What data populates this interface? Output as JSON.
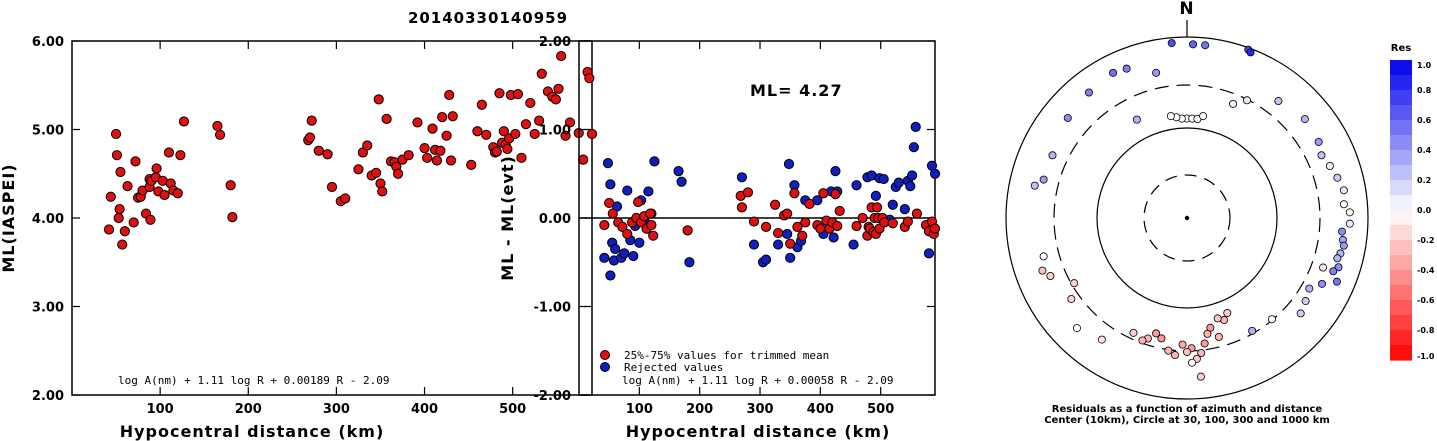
{
  "chart_data": [
    {
      "type": "scatter",
      "title": "20140330140959",
      "xlabel": "Hypocentral distance (km)",
      "ylabel": "ML(IASPEI)",
      "xlim": [
        0,
        590
      ],
      "ylim": [
        2.0,
        6.0
      ],
      "x_ticks": [
        "100",
        "200",
        "300",
        "400",
        "500"
      ],
      "y_ticks": [
        "2.00",
        "3.00",
        "4.00",
        "5.00",
        "6.00"
      ],
      "formula": "log A(nm) + 1.11 log R + 0.00189 R - 2.09",
      "point_color": "#e01010",
      "points": [
        [
          42,
          3.87
        ],
        [
          44,
          4.24
        ],
        [
          50,
          4.95
        ],
        [
          51,
          4.71
        ],
        [
          53,
          4.0
        ],
        [
          54,
          4.1
        ],
        [
          55,
          4.52
        ],
        [
          57,
          3.7
        ],
        [
          60,
          3.85
        ],
        [
          63,
          4.36
        ],
        [
          70,
          3.95
        ],
        [
          72,
          4.64
        ],
        [
          75,
          4.23
        ],
        [
          78,
          4.24
        ],
        [
          80,
          4.31
        ],
        [
          84,
          4.05
        ],
        [
          88,
          4.44
        ],
        [
          88,
          4.35
        ],
        [
          89,
          3.98
        ],
        [
          90,
          4.42
        ],
        [
          95,
          4.46
        ],
        [
          96,
          4.56
        ],
        [
          98,
          4.3
        ],
        [
          103,
          4.42
        ],
        [
          105,
          4.26
        ],
        [
          110,
          4.74
        ],
        [
          112,
          4.39
        ],
        [
          115,
          4.31
        ],
        [
          120,
          4.28
        ],
        [
          123,
          4.71
        ],
        [
          127,
          5.09
        ],
        [
          165,
          5.04
        ],
        [
          168,
          4.94
        ],
        [
          180,
          4.37
        ],
        [
          182,
          4.01
        ],
        [
          268,
          4.88
        ],
        [
          270,
          4.91
        ],
        [
          272,
          5.1
        ],
        [
          280,
          4.76
        ],
        [
          290,
          4.72
        ],
        [
          295,
          4.35
        ],
        [
          305,
          4.19
        ],
        [
          310,
          4.22
        ],
        [
          325,
          4.55
        ],
        [
          330,
          4.74
        ],
        [
          335,
          4.82
        ],
        [
          340,
          4.48
        ],
        [
          345,
          4.51
        ],
        [
          348,
          5.34
        ],
        [
          350,
          4.39
        ],
        [
          352,
          4.3
        ],
        [
          357,
          5.12
        ],
        [
          362,
          4.64
        ],
        [
          366,
          4.63
        ],
        [
          368,
          4.58
        ],
        [
          370,
          4.5
        ],
        [
          375,
          4.66
        ],
        [
          382,
          4.71
        ],
        [
          392,
          5.08
        ],
        [
          400,
          4.79
        ],
        [
          403,
          4.68
        ],
        [
          409,
          5.01
        ],
        [
          412,
          4.77
        ],
        [
          414,
          4.65
        ],
        [
          418,
          4.76
        ],
        [
          420,
          5.14
        ],
        [
          425,
          4.93
        ],
        [
          428,
          5.39
        ],
        [
          430,
          4.65
        ],
        [
          432,
          5.15
        ],
        [
          453,
          4.6
        ],
        [
          460,
          4.98
        ],
        [
          465,
          5.28
        ],
        [
          470,
          4.94
        ],
        [
          478,
          4.8
        ],
        [
          480,
          4.74
        ],
        [
          482,
          4.75
        ],
        [
          485,
          5.41
        ],
        [
          488,
          4.85
        ],
        [
          490,
          4.98
        ],
        [
          492,
          4.83
        ],
        [
          494,
          4.78
        ],
        [
          496,
          4.9
        ],
        [
          498,
          5.39
        ],
        [
          503,
          4.95
        ],
        [
          506,
          5.4
        ],
        [
          510,
          4.68
        ],
        [
          515,
          5.06
        ],
        [
          520,
          5.3
        ],
        [
          525,
          4.95
        ],
        [
          530,
          5.1
        ],
        [
          533,
          5.63
        ],
        [
          540,
          5.43
        ],
        [
          545,
          5.37
        ],
        [
          549,
          5.34
        ],
        [
          552,
          5.46
        ],
        [
          555,
          5.83
        ],
        [
          560,
          4.93
        ],
        [
          565,
          5.08
        ],
        [
          575,
          4.96
        ],
        [
          580,
          4.66
        ],
        [
          585,
          5.65
        ],
        [
          587,
          5.58
        ],
        [
          590,
          4.95
        ]
      ]
    },
    {
      "type": "scatter",
      "xlabel": "Hypocentral distance (km)",
      "ylabel": "ML - ML(evt)",
      "xlim": [
        0,
        590
      ],
      "ylim": [
        -2.0,
        2.0
      ],
      "x_ticks": [
        "100",
        "200",
        "300",
        "400",
        "500"
      ],
      "y_ticks": [
        "-2.00",
        "-1.00",
        "0.00",
        "1.00",
        "2.00"
      ],
      "ml_label": "ML= 4.27",
      "formula": "log A(nm) + 1.11 log R + 0.00058 R - 2.09",
      "legend": [
        {
          "label": "25%-75% values for trimmed mean",
          "color": "#e01010"
        },
        {
          "label": "Rejected values",
          "color": "#1020c0"
        }
      ],
      "trimmed": [
        [
          42,
          -0.08
        ],
        [
          50,
          0.17
        ],
        [
          56,
          0.05
        ],
        [
          65,
          -0.05
        ],
        [
          72,
          -0.1
        ],
        [
          80,
          -0.18
        ],
        [
          88,
          -0.05
        ],
        [
          95,
          0.0
        ],
        [
          98,
          0.18
        ],
        [
          103,
          -0.05
        ],
        [
          108,
          0.02
        ],
        [
          112,
          -0.12
        ],
        [
          118,
          0.05
        ],
        [
          120,
          -0.08
        ],
        [
          123,
          -0.2
        ],
        [
          180,
          -0.14
        ],
        [
          268,
          0.25
        ],
        [
          270,
          0.12
        ],
        [
          280,
          0.29
        ],
        [
          290,
          -0.04
        ],
        [
          310,
          -0.1
        ],
        [
          325,
          0.15
        ],
        [
          330,
          -0.17
        ],
        [
          340,
          0.03
        ],
        [
          345,
          0.05
        ],
        [
          350,
          -0.29
        ],
        [
          357,
          0.28
        ],
        [
          362,
          -0.1
        ],
        [
          370,
          -0.2
        ],
        [
          375,
          -0.05
        ],
        [
          382,
          0.16
        ],
        [
          395,
          -0.08
        ],
        [
          400,
          -0.12
        ],
        [
          405,
          0.28
        ],
        [
          410,
          -0.03
        ],
        [
          415,
          -0.12
        ],
        [
          420,
          -0.05
        ],
        [
          425,
          0.27
        ],
        [
          428,
          -0.09
        ],
        [
          432,
          0.08
        ],
        [
          460,
          -0.09
        ],
        [
          470,
          0.0
        ],
        [
          478,
          -0.2
        ],
        [
          480,
          -0.1
        ],
        [
          482,
          -0.12
        ],
        [
          485,
          0.12
        ],
        [
          488,
          -0.16
        ],
        [
          490,
          0.0
        ],
        [
          492,
          -0.18
        ],
        [
          494,
          0.12
        ],
        [
          496,
          0.0
        ],
        [
          498,
          -0.12
        ],
        [
          503,
          0.0
        ],
        [
          506,
          -0.05
        ],
        [
          520,
          -0.06
        ],
        [
          540,
          -0.1
        ],
        [
          545,
          -0.04
        ],
        [
          560,
          0.05
        ],
        [
          575,
          -0.08
        ],
        [
          580,
          -0.15
        ],
        [
          585,
          -0.04
        ],
        [
          588,
          -0.18
        ],
        [
          590,
          -0.12
        ]
      ],
      "rejected": [
        [
          42,
          -0.45
        ],
        [
          48,
          0.62
        ],
        [
          52,
          -0.65
        ],
        [
          52,
          0.38
        ],
        [
          55,
          -0.28
        ],
        [
          58,
          -0.48
        ],
        [
          60,
          -0.35
        ],
        [
          63,
          0.13
        ],
        [
          70,
          -0.45
        ],
        [
          75,
          -0.4
        ],
        [
          80,
          0.31
        ],
        [
          85,
          -0.25
        ],
        [
          90,
          -0.43
        ],
        [
          93,
          -0.09
        ],
        [
          100,
          -0.28
        ],
        [
          103,
          0.2
        ],
        [
          110,
          -0.05
        ],
        [
          115,
          0.3
        ],
        [
          120,
          0.05
        ],
        [
          125,
          0.64
        ],
        [
          165,
          0.53
        ],
        [
          170,
          0.41
        ],
        [
          183,
          -0.5
        ],
        [
          270,
          0.46
        ],
        [
          290,
          -0.3
        ],
        [
          305,
          -0.5
        ],
        [
          310,
          -0.47
        ],
        [
          330,
          -0.3
        ],
        [
          345,
          -0.18
        ],
        [
          348,
          0.61
        ],
        [
          350,
          -0.45
        ],
        [
          357,
          0.37
        ],
        [
          362,
          -0.33
        ],
        [
          368,
          -0.26
        ],
        [
          375,
          0.2
        ],
        [
          395,
          0.2
        ],
        [
          405,
          -0.18
        ],
        [
          418,
          0.3
        ],
        [
          422,
          -0.22
        ],
        [
          425,
          0.53
        ],
        [
          428,
          0.3
        ],
        [
          455,
          -0.3
        ],
        [
          460,
          0.37
        ],
        [
          478,
          0.46
        ],
        [
          485,
          0.48
        ],
        [
          492,
          0.25
        ],
        [
          498,
          0.45
        ],
        [
          505,
          0.44
        ],
        [
          515,
          -0.02
        ],
        [
          520,
          0.15
        ],
        [
          525,
          0.35
        ],
        [
          530,
          0.4
        ],
        [
          540,
          0.1
        ],
        [
          545,
          0.42
        ],
        [
          549,
          0.36
        ],
        [
          552,
          0.48
        ],
        [
          555,
          0.8
        ],
        [
          558,
          1.03
        ],
        [
          580,
          -0.4
        ],
        [
          585,
          0.59
        ],
        [
          590,
          0.5
        ]
      ]
    },
    {
      "type": "polar_scatter",
      "north_label": "N",
      "caption_line1": "Residuals as a function of azimuth and distance",
      "caption_line2": "Center (10km), Circle at 30, 100, 300 and 1000 km",
      "colorbar_title": "Res",
      "colorbar_ticks": [
        "1.0",
        "0.8",
        "0.6",
        "0.4",
        "0.2",
        "0.0",
        "-0.2",
        "-0.4",
        "-0.6",
        "-0.8",
        "-1.0"
      ],
      "colorbar_range": [
        -1.0,
        1.0
      ],
      "points": [
        [
          0,
          0.55,
          0.0
        ],
        [
          -3,
          0.55,
          0.0
        ],
        [
          3,
          0.55,
          0.0
        ],
        [
          -6,
          0.56,
          0.0
        ],
        [
          6,
          0.55,
          0.0
        ],
        [
          -9,
          0.57,
          0.0
        ],
        [
          9,
          0.57,
          0.0
        ],
        [
          -27,
          0.61,
          0.3
        ],
        [
          22,
          0.68,
          0.05
        ],
        [
          27,
          0.73,
          0.1
        ],
        [
          38,
          0.82,
          0.25
        ],
        [
          50,
          0.85,
          0.3
        ],
        [
          60,
          0.84,
          0.4
        ],
        [
          65,
          0.82,
          0.25
        ],
        [
          70,
          0.84,
          0.05
        ],
        [
          75,
          0.86,
          0.2
        ],
        [
          80,
          0.88,
          0.1
        ],
        [
          85,
          0.87,
          0.0
        ],
        [
          88,
          0.9,
          -0.05
        ],
        [
          92,
          0.9,
          0.1
        ],
        [
          95,
          0.86,
          0.45
        ],
        [
          98,
          0.87,
          0.35
        ],
        [
          100,
          0.88,
          0.4
        ],
        [
          103,
          0.87,
          0.3
        ],
        [
          105,
          0.86,
          0.3
        ],
        [
          108,
          0.88,
          0.45
        ],
        [
          110,
          0.86,
          0.5
        ],
        [
          113,
          0.9,
          0.55
        ],
        [
          110,
          0.8,
          -0.1
        ],
        [
          116,
          0.83,
          0.45
        ],
        [
          120,
          0.78,
          0.3
        ],
        [
          125,
          0.8,
          0.2
        ],
        [
          130,
          0.82,
          0.2
        ],
        [
          140,
          0.73,
          0.0
        ],
        [
          150,
          0.72,
          0.3
        ],
        [
          157,
          0.57,
          -0.2
        ],
        [
          160,
          0.6,
          -0.3
        ],
        [
          163,
          0.58,
          -0.2
        ],
        [
          165,
          0.68,
          -0.3
        ],
        [
          168,
          0.62,
          -0.4
        ],
        [
          170,
          0.65,
          -0.3
        ],
        [
          172,
          0.7,
          -0.4
        ],
        [
          174,
          0.75,
          -0.3
        ],
        [
          176,
          0.78,
          -0.2
        ],
        [
          178,
          0.72,
          -0.4
        ],
        [
          180,
          0.74,
          -0.25
        ],
        [
          182,
          0.7,
          -0.35
        ],
        [
          175,
          0.88,
          -0.2
        ],
        [
          178,
          0.8,
          0.0
        ],
        [
          185,
          0.76,
          -0.3
        ],
        [
          188,
          0.74,
          -0.3
        ],
        [
          192,
          0.68,
          -0.4
        ],
        [
          195,
          0.66,
          -0.4
        ],
        [
          198,
          0.7,
          -0.3
        ],
        [
          200,
          0.72,
          -0.3
        ],
        [
          205,
          0.7,
          -0.2
        ],
        [
          215,
          0.82,
          -0.1
        ],
        [
          225,
          0.86,
          0.0
        ],
        [
          235,
          0.78,
          -0.2
        ],
        [
          240,
          0.72,
          -0.2
        ],
        [
          247,
          0.82,
          -0.2
        ],
        [
          250,
          0.85,
          -0.25
        ],
        [
          255,
          0.82,
          0.0
        ],
        [
          282,
          0.86,
          0.25
        ],
        [
          285,
          0.82,
          0.4
        ],
        [
          295,
          0.82,
          0.3
        ],
        [
          310,
          0.86,
          0.45
        ],
        [
          322,
          0.88,
          0.5
        ],
        [
          333,
          0.9,
          0.55
        ],
        [
          338,
          0.89,
          0.5
        ],
        [
          348,
          0.82,
          0.4
        ],
        [
          355,
          0.97,
          0.7
        ],
        [
          2,
          0.96,
          0.6
        ],
        [
          6,
          0.96,
          0.55
        ],
        [
          20,
          0.99,
          0.75
        ],
        [
          21,
          0.98,
          0.85
        ]
      ]
    }
  ]
}
